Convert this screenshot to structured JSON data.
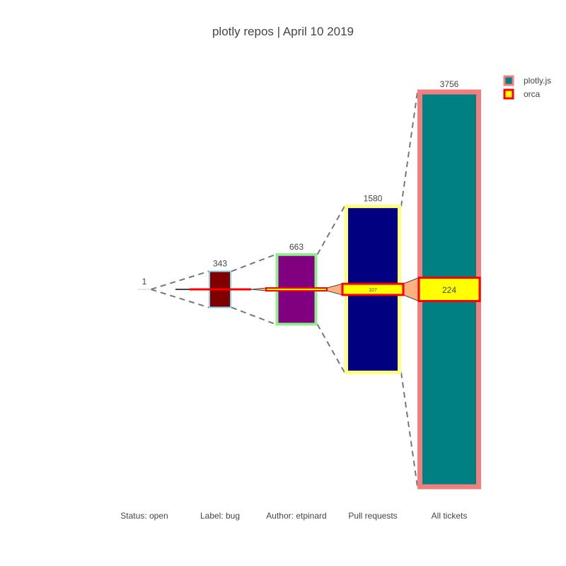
{
  "chart_data": {
    "type": "funnel",
    "title": "plotly repos | April 10 2019",
    "categories": [
      "Status: open",
      "Label: bug",
      "Author: etpinard",
      "Pull requests",
      "All tickets"
    ],
    "series": [
      {
        "name": "plotly.js",
        "values": [
          1,
          343,
          663,
          1580,
          3756
        ],
        "value_labels": [
          "1",
          "343",
          "663",
          "1580",
          "3756"
        ],
        "fill_colors": [
          "#ffffff",
          "#800000",
          "#800080",
          "#000080",
          "#008080"
        ],
        "line_colors": [
          "#cccccc",
          "#87ceeb",
          "#90ee90",
          "#ffff80",
          "#f08080"
        ],
        "connector_style": "dashed"
      },
      {
        "name": "orca",
        "values": [
          0,
          0,
          0,
          107,
          224
        ],
        "value_labels": [
          "",
          "",
          "",
          "107",
          "224"
        ],
        "fill_color": "#ffff00",
        "line_color": "#ff0000",
        "connector_fill": "#ffb27f"
      }
    ],
    "legend": {
      "position": "top-right",
      "items": [
        {
          "name": "plotly.js",
          "fill": "#008080",
          "stroke": "#f08080"
        },
        {
          "name": "orca",
          "fill": "#ffff00",
          "stroke": "#ff0000"
        }
      ]
    },
    "grid": false
  }
}
